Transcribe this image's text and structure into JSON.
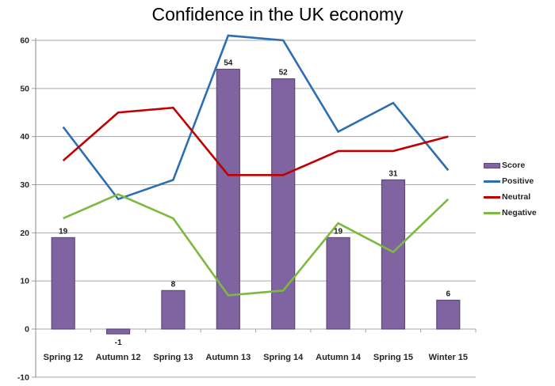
{
  "chart_data": {
    "type": "combo-bar-line",
    "title": "Confidence in the UK economy",
    "categories": [
      "Spring 12",
      "Autumn 12",
      "Spring 13",
      "Autumn 13",
      "Spring 14",
      "Autumn 14",
      "Spring 15",
      "Winter 15"
    ],
    "series": [
      {
        "name": "Score",
        "type": "bar",
        "color": "#8064A2",
        "border_color": "#5F497A",
        "values": [
          19,
          -1,
          8,
          54,
          52,
          19,
          31,
          6
        ],
        "data_labels": true
      },
      {
        "name": "Positive",
        "type": "line",
        "color": "#2E6DB4",
        "values": [
          42,
          27,
          31,
          61,
          60,
          41,
          47,
          33
        ]
      },
      {
        "name": "Neutral",
        "type": "line",
        "color": "#C00000",
        "values": [
          35,
          45,
          46,
          32,
          32,
          37,
          37,
          40
        ]
      },
      {
        "name": "Negative",
        "type": "line",
        "color": "#7CB93E",
        "values": [
          23,
          28,
          23,
          7,
          8,
          22,
          16,
          27
        ]
      }
    ],
    "y_axis": {
      "min": -10,
      "max": 60,
      "step": 10,
      "tick_labels": [
        "60",
        "50",
        "40",
        "30",
        "20",
        "10",
        "0",
        "-10"
      ]
    },
    "legend": {
      "position": "right",
      "entries": [
        "Score",
        "Positive",
        "Neutral",
        "Negative"
      ]
    },
    "grid": true,
    "grid_color": "#A6A6A6",
    "axis_color": "#9B9B9B",
    "background_color": "#FFFFFF"
  }
}
